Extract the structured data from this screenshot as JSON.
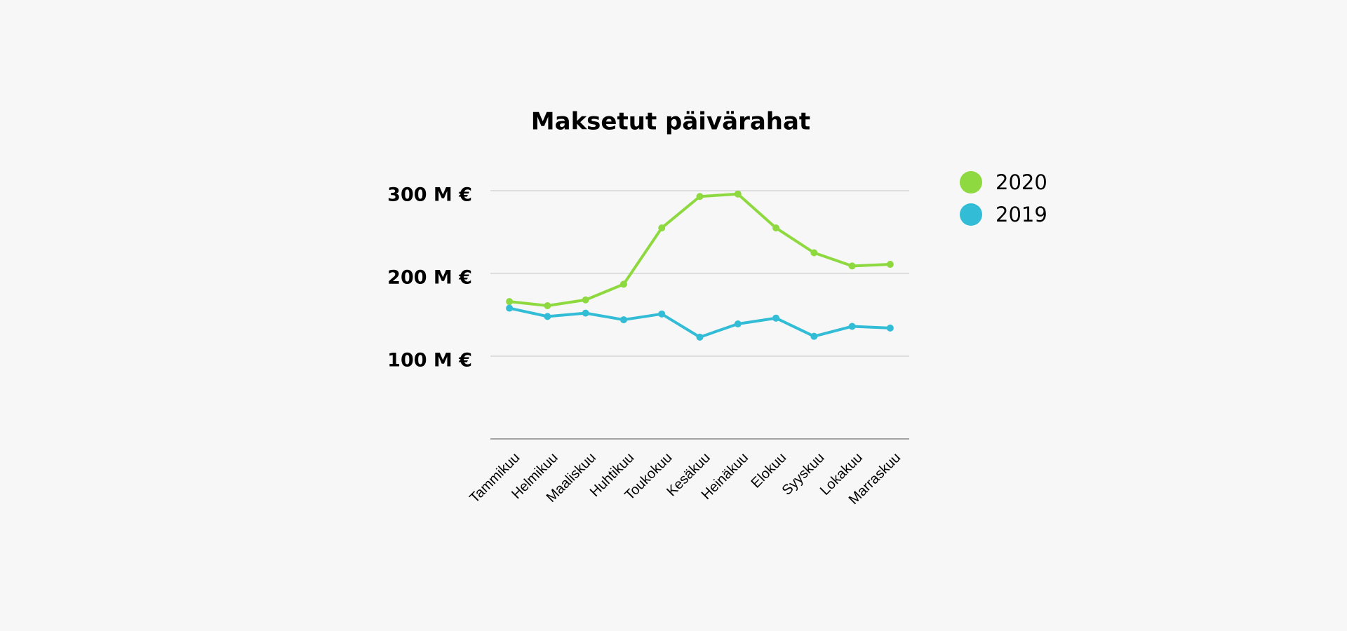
{
  "chart_data": {
    "type": "line",
    "title": "Maksetut päivärahat",
    "categories": [
      "Tammikuu",
      "Helmikuu",
      "Maaliskuu",
      "Huhtikuu",
      "Toukokuu",
      "Kesäkuu",
      "Heinäkuu",
      "Elokuu",
      "Syyskuu",
      "Lokakuu",
      "Marraskuu"
    ],
    "series": [
      {
        "name": "2020",
        "color": "#8ed93f",
        "values": [
          166,
          161,
          168,
          187,
          255,
          293,
          296,
          255,
          225,
          209,
          211
        ]
      },
      {
        "name": "2019",
        "color": "#33bcd6",
        "values": [
          158,
          148,
          152,
          144,
          151,
          123,
          139,
          146,
          124,
          136,
          134
        ]
      }
    ],
    "ylim": [
      0,
      300
    ],
    "yticks": [
      {
        "value": 100,
        "label": "100 M €"
      },
      {
        "value": 200,
        "label": "200 M €"
      },
      {
        "value": 300,
        "label": "300 M €"
      }
    ],
    "grid": true,
    "legend": "right"
  }
}
